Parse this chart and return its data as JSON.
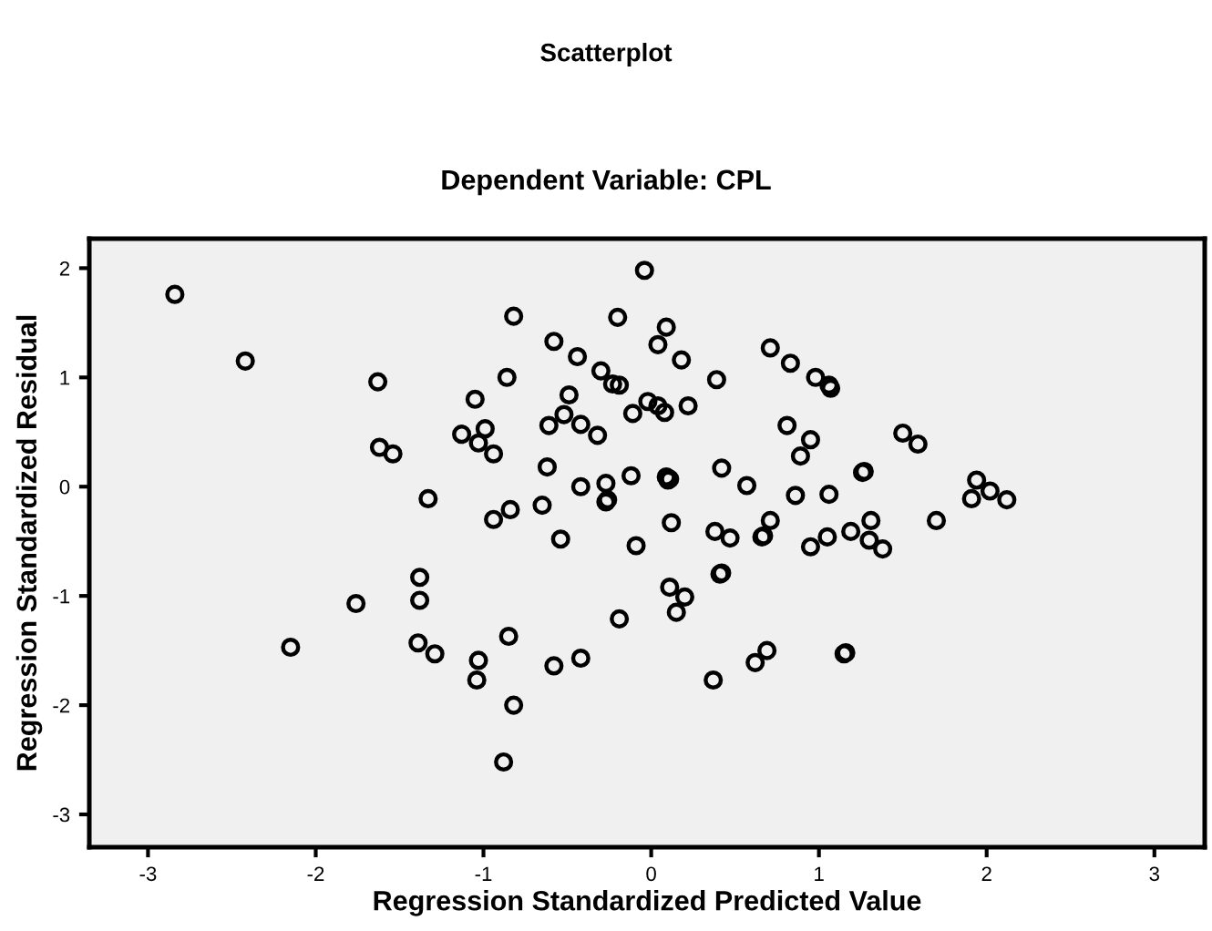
{
  "chart_data": {
    "type": "scatter",
    "title": "Scatterplot",
    "subtitle": "Dependent Variable: CPL",
    "xlabel": "Regression Standardized Predicted Value",
    "ylabel": "Regression Standardized Residual",
    "xlim": [
      -3.35,
      3.3
    ],
    "ylim": [
      -3.3,
      2.27
    ],
    "xticks": [
      -3,
      -2,
      -1,
      0,
      1,
      2,
      3
    ],
    "yticks": [
      -3,
      -2,
      -1,
      0,
      1,
      2
    ],
    "grid": false,
    "legend": false,
    "marker": "circle",
    "series": [
      {
        "color": "#000000",
        "x": [
          -2.84,
          -2.42,
          -1.63,
          -1.62,
          -1.54,
          -1.33,
          -0.82,
          -0.86,
          -1.05,
          -1.13,
          -0.99,
          -1.03,
          -0.94,
          -0.94,
          -0.84,
          -0.65,
          -0.58,
          -0.44,
          -0.3,
          -0.49,
          -0.61,
          -0.52,
          -0.42,
          -0.32,
          -0.62,
          -0.42,
          -0.27,
          -0.27,
          -0.26,
          -0.54,
          -1.38,
          -0.2,
          -0.23,
          -0.04,
          0.09,
          0.04,
          0.18,
          -0.19,
          0.39,
          0.71,
          0.83,
          0.98,
          1.06,
          1.07,
          -0.11,
          -0.02,
          0.04,
          0.08,
          0.22,
          0.81,
          0.95,
          0.89,
          1.5,
          1.59,
          1.94,
          1.91,
          2.02,
          2.12,
          1.7,
          -0.12,
          0.09,
          0.11,
          0.1,
          0.42,
          0.57,
          1.26,
          1.27,
          0.86,
          1.06,
          0.12,
          -0.09,
          0.38,
          0.47,
          0.66,
          0.67,
          0.71,
          0.95,
          1.05,
          1.19,
          1.31,
          1.3,
          1.38,
          0.41,
          0.42,
          0.11,
          0.2,
          0.15,
          -0.19,
          -0.42,
          0.69,
          0.62,
          0.37,
          1.15,
          1.16,
          -1.38,
          -1.76,
          -2.15,
          -1.39,
          -1.29,
          -0.85,
          -1.03,
          -1.04,
          -0.82,
          -0.88,
          -0.58
        ],
        "values": [
          1.76,
          1.15,
          0.96,
          0.36,
          0.3,
          -0.11,
          1.56,
          1.0,
          0.8,
          0.48,
          0.53,
          0.4,
          0.3,
          -0.3,
          -0.21,
          -0.17,
          1.33,
          1.19,
          1.06,
          0.84,
          0.56,
          0.66,
          0.57,
          0.47,
          0.18,
          0.0,
          0.03,
          -0.14,
          -0.12,
          -0.48,
          -0.83,
          1.55,
          0.94,
          1.98,
          1.46,
          1.3,
          1.16,
          0.93,
          0.98,
          1.27,
          1.13,
          1.0,
          0.93,
          0.9,
          0.67,
          0.78,
          0.74,
          0.68,
          0.74,
          0.56,
          0.43,
          0.28,
          0.49,
          0.39,
          0.06,
          -0.11,
          -0.04,
          -0.12,
          -0.31,
          0.1,
          0.09,
          0.07,
          0.06,
          0.17,
          0.01,
          0.13,
          0.14,
          -0.08,
          -0.07,
          -0.33,
          -0.54,
          -0.41,
          -0.47,
          -0.46,
          -0.45,
          -0.31,
          -0.55,
          -0.46,
          -0.41,
          -0.31,
          -0.49,
          -0.57,
          -0.8,
          -0.79,
          -0.92,
          -1.01,
          -1.15,
          -1.21,
          -1.57,
          -1.5,
          -1.61,
          -1.77,
          -1.53,
          -1.52,
          -1.04,
          -1.07,
          -1.47,
          -1.43,
          -1.53,
          -1.37,
          -1.59,
          -1.77,
          -2.0,
          -2.52,
          -1.64
        ]
      }
    ]
  }
}
